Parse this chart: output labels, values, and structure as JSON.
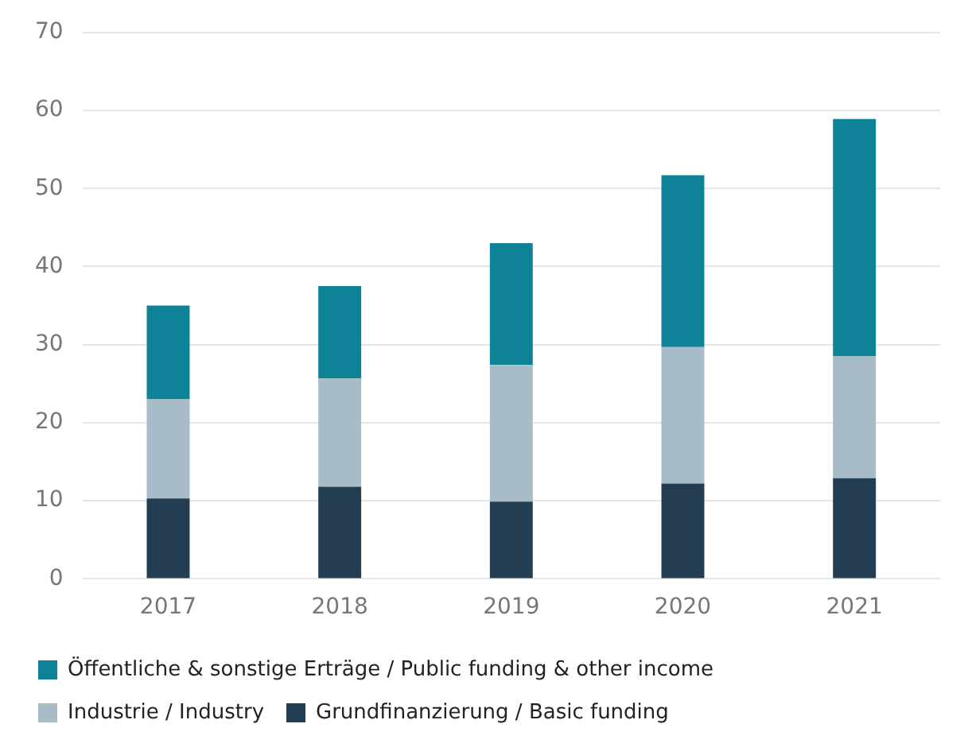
{
  "chart_data": {
    "type": "bar",
    "stacked": true,
    "categories": [
      "2017",
      "2018",
      "2019",
      "2020",
      "2021"
    ],
    "series": [
      {
        "name": "Grundfinanzierung / Basic funding",
        "color": "#233d52",
        "values": [
          10.3,
          11.8,
          9.9,
          12.2,
          12.9
        ]
      },
      {
        "name": "Industrie / Industry",
        "color": "#a8bcc8",
        "values": [
          12.7,
          13.9,
          17.5,
          17.5,
          15.6
        ]
      },
      {
        "name": "Öffentliche & sonstige Erträge / Public funding & other income",
        "color": "#0e8296",
        "values": [
          12.0,
          11.8,
          15.6,
          22.0,
          30.4
        ]
      }
    ],
    "ylim": [
      0,
      70
    ],
    "yticks": [
      0,
      10,
      20,
      30,
      40,
      50,
      60,
      70
    ],
    "grid": "y",
    "legend": "bottom"
  }
}
